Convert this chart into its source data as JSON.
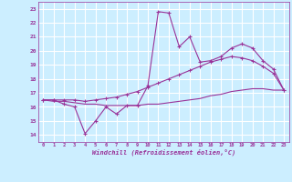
{
  "xlabel": "Windchill (Refroidissement éolien,°C)",
  "ylabel": "",
  "xlim": [
    -0.5,
    23.5
  ],
  "ylim": [
    13.5,
    23.5
  ],
  "yticks": [
    14,
    15,
    16,
    17,
    18,
    19,
    20,
    21,
    22,
    23
  ],
  "xticks": [
    0,
    1,
    2,
    3,
    4,
    5,
    6,
    7,
    8,
    9,
    10,
    11,
    12,
    13,
    14,
    15,
    16,
    17,
    18,
    19,
    20,
    21,
    22,
    23
  ],
  "background_color": "#cceeff",
  "grid_color": "#ffffff",
  "line_color": "#993399",
  "line1_x": [
    0,
    1,
    2,
    3,
    4,
    5,
    6,
    7,
    8,
    9,
    10,
    11,
    12,
    13,
    14,
    15,
    16,
    17,
    18,
    19,
    20,
    21,
    22,
    23
  ],
  "line1_y": [
    16.5,
    16.5,
    16.2,
    16.0,
    14.1,
    15.0,
    16.0,
    15.5,
    16.1,
    16.1,
    17.5,
    22.8,
    22.7,
    20.3,
    21.0,
    19.2,
    19.3,
    19.6,
    20.2,
    20.5,
    20.2,
    19.3,
    18.7,
    17.2
  ],
  "line2_x": [
    0,
    1,
    2,
    3,
    4,
    5,
    6,
    7,
    8,
    9,
    10,
    11,
    12,
    13,
    14,
    15,
    16,
    17,
    18,
    19,
    20,
    21,
    22,
    23
  ],
  "line2_y": [
    16.5,
    16.5,
    16.5,
    16.5,
    16.4,
    16.5,
    16.6,
    16.7,
    16.9,
    17.1,
    17.4,
    17.7,
    18.0,
    18.3,
    18.6,
    18.9,
    19.2,
    19.4,
    19.6,
    19.5,
    19.3,
    18.9,
    18.4,
    17.2
  ],
  "line3_x": [
    0,
    1,
    2,
    3,
    4,
    5,
    6,
    7,
    8,
    9,
    10,
    11,
    12,
    13,
    14,
    15,
    16,
    17,
    18,
    19,
    20,
    21,
    22,
    23
  ],
  "line3_y": [
    16.5,
    16.4,
    16.4,
    16.3,
    16.2,
    16.2,
    16.1,
    16.1,
    16.1,
    16.1,
    16.2,
    16.2,
    16.3,
    16.4,
    16.5,
    16.6,
    16.8,
    16.9,
    17.1,
    17.2,
    17.3,
    17.3,
    17.2,
    17.2
  ]
}
